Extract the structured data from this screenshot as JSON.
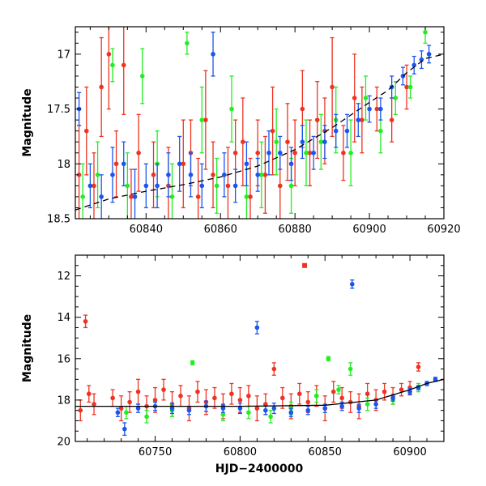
{
  "chart_data": [
    {
      "type": "scatter",
      "xlim": [
        60821,
        60920
      ],
      "ylim": [
        18.5,
        16.75
      ],
      "xticks": [
        60840,
        60860,
        60880,
        60900,
        60920
      ],
      "xtick_labels": [
        "60840",
        "60860",
        "60880",
        "60900",
        "60920"
      ],
      "yticks": [
        17,
        17.5,
        18,
        18.5
      ],
      "ytick_labels": [
        "17",
        "17.5",
        "18",
        "18.5"
      ],
      "xlabel": "",
      "ylabel": "Magnitude",
      "grid": false,
      "legend": "none",
      "model_curve": {
        "style": "dashed",
        "x": [
          60821,
          60830,
          60840,
          60850,
          60860,
          60870,
          60880,
          60890,
          60900,
          60905,
          60910,
          60915,
          60920
        ],
        "y": [
          18.42,
          18.32,
          18.25,
          18.19,
          18.12,
          18.02,
          17.87,
          17.67,
          17.44,
          17.33,
          17.17,
          17.04,
          17.0
        ]
      },
      "series": [
        {
          "color": "#ee3322",
          "x": [
            60822,
            60824,
            60826,
            60828,
            60830,
            60832,
            60834,
            60836,
            60838,
            60842,
            60846,
            60850,
            60852,
            60854,
            60856,
            60858,
            60862,
            60864,
            60866,
            60868,
            60870,
            60872,
            60874,
            60876,
            60878,
            60880,
            60882,
            60884,
            60886,
            60888,
            60890,
            60893,
            60896,
            60898,
            60902,
            60906,
            60910
          ],
          "y": [
            18.1,
            17.7,
            18.2,
            17.3,
            17.0,
            18.0,
            17.1,
            18.3,
            17.9,
            18.1,
            18.2,
            18.0,
            17.9,
            18.3,
            17.6,
            18.1,
            18.2,
            17.9,
            17.8,
            18.3,
            17.9,
            18.1,
            17.7,
            18.2,
            17.8,
            17.9,
            17.5,
            17.9,
            17.6,
            17.7,
            17.3,
            17.9,
            17.4,
            17.6,
            17.5,
            17.6,
            17.3
          ],
          "err": [
            0.45,
            0.4,
            0.3,
            0.45,
            0.5,
            0.3,
            0.45,
            0.25,
            0.35,
            0.3,
            0.35,
            0.4,
            0.3,
            0.35,
            0.45,
            0.3,
            0.35,
            0.3,
            0.4,
            0.35,
            0.3,
            0.35,
            0.4,
            0.3,
            0.35,
            0.3,
            0.35,
            0.3,
            0.35,
            0.3,
            0.45,
            0.25,
            0.4,
            0.3,
            0.2,
            0.2,
            0.2
          ]
        },
        {
          "color": "#22ee22",
          "x": [
            60823,
            60827,
            60831,
            60835,
            60839,
            60843,
            60847,
            60851,
            60855,
            60859,
            60863,
            60867,
            60871,
            60875,
            60879,
            60883,
            60887,
            60891,
            60895,
            60899,
            60903,
            60907,
            60911,
            60915
          ],
          "y": [
            18.3,
            18.1,
            17.1,
            18.2,
            17.2,
            18.0,
            18.3,
            16.9,
            17.6,
            18.2,
            17.5,
            18.3,
            18.1,
            17.8,
            18.2,
            17.9,
            17.8,
            17.6,
            17.9,
            17.4,
            17.7,
            17.4,
            17.3,
            16.8
          ],
          "err": [
            0.3,
            0.3,
            0.15,
            0.3,
            0.25,
            0.3,
            0.3,
            0.1,
            0.3,
            0.25,
            0.3,
            0.25,
            0.3,
            0.3,
            0.25,
            0.3,
            0.25,
            0.3,
            0.3,
            0.2,
            0.2,
            0.15,
            0.1,
            0.1
          ]
        },
        {
          "color": "#1a55ee",
          "x": [
            60822,
            60825,
            60828,
            60831,
            60834,
            60837,
            60840,
            60843,
            60846,
            60849,
            60852,
            60855,
            60858,
            60861,
            60864,
            60867,
            60870,
            60873,
            60876,
            60879,
            60882,
            60885,
            60888,
            60891,
            60894,
            60897,
            60900,
            60903,
            60906,
            60909,
            60912,
            60914,
            60916
          ],
          "y": [
            17.5,
            18.2,
            18.3,
            18.1,
            18.0,
            18.3,
            18.2,
            18.2,
            18.1,
            18.0,
            18.1,
            18.2,
            17.0,
            18.1,
            18.2,
            18.0,
            18.1,
            17.9,
            17.9,
            18.0,
            17.8,
            17.9,
            17.8,
            17.7,
            17.7,
            17.6,
            17.5,
            17.5,
            17.3,
            17.2,
            17.1,
            17.05,
            17.0
          ],
          "err": [
            0.15,
            0.2,
            0.2,
            0.25,
            0.2,
            0.25,
            0.2,
            0.2,
            0.2,
            0.25,
            0.2,
            0.2,
            0.2,
            0.2,
            0.15,
            0.2,
            0.15,
            0.2,
            0.15,
            0.15,
            0.15,
            0.15,
            0.15,
            0.15,
            0.15,
            0.15,
            0.12,
            0.1,
            0.1,
            0.08,
            0.08,
            0.08,
            0.08
          ]
        }
      ]
    },
    {
      "type": "scatter",
      "xlim": [
        60703,
        60920
      ],
      "ylim": [
        20,
        11
      ],
      "xticks": [
        60750,
        60800,
        60850,
        60900
      ],
      "xtick_labels": [
        "60750",
        "60800",
        "60850",
        "60900"
      ],
      "yticks": [
        12,
        14,
        16,
        18,
        20
      ],
      "ytick_labels": [
        "12",
        "14",
        "16",
        "18",
        "20"
      ],
      "xlabel": "HJD−2400000",
      "ylabel": "Magnitude",
      "grid": false,
      "legend": "none",
      "model_curve": {
        "style": "solid",
        "x": [
          60703,
          60725,
          60750,
          60800,
          60850,
          60880,
          60900,
          60910,
          60920
        ],
        "y": [
          18.3,
          18.3,
          18.3,
          18.3,
          18.25,
          18.0,
          17.5,
          17.2,
          17.0
        ]
      },
      "series": [
        {
          "color": "#ee3322",
          "x": [
            60706,
            60709,
            60711,
            60714,
            60725,
            60730,
            60735,
            60740,
            60745,
            60750,
            60755,
            60760,
            60765,
            60770,
            60775,
            60780,
            60785,
            60790,
            60795,
            60800,
            60805,
            60810,
            60815,
            60820,
            60825,
            60830,
            60835,
            60838,
            60840,
            60845,
            60850,
            60855,
            60860,
            60865,
            60870,
            60875,
            60880,
            60885,
            60890,
            60895,
            60900,
            60905
          ],
          "y": [
            18.5,
            14.2,
            17.7,
            18.2,
            17.9,
            18.4,
            18.1,
            17.6,
            18.3,
            18.0,
            17.5,
            18.2,
            17.8,
            18.4,
            17.6,
            18.1,
            17.9,
            18.3,
            17.7,
            18.0,
            17.8,
            18.4,
            18.2,
            16.5,
            17.9,
            18.3,
            17.7,
            11.5,
            18.1,
            17.8,
            18.4,
            17.6,
            17.9,
            18.1,
            18.3,
            17.7,
            18.0,
            17.6,
            17.8,
            17.5,
            17.4,
            16.4
          ],
          "err": [
            0.5,
            0.3,
            0.4,
            0.5,
            0.4,
            0.6,
            0.5,
            0.6,
            0.5,
            0.6,
            0.5,
            0.6,
            0.5,
            0.6,
            0.5,
            0.6,
            0.5,
            0.6,
            0.5,
            0.6,
            0.5,
            0.6,
            0.5,
            0.3,
            0.5,
            0.6,
            0.5,
            0.0,
            0.5,
            0.5,
            0.6,
            0.5,
            0.5,
            0.5,
            0.6,
            0.5,
            0.5,
            0.4,
            0.4,
            0.3,
            0.3,
            0.2
          ]
        },
        {
          "color": "#22ee22",
          "x": [
            60733,
            60745,
            60760,
            60772,
            60790,
            60805,
            60818,
            60830,
            60845,
            60852,
            60858,
            60865,
            60875,
            60890,
            60905
          ],
          "y": [
            18.6,
            18.8,
            18.5,
            16.2,
            18.7,
            18.6,
            18.8,
            18.4,
            17.8,
            16.0,
            17.5,
            16.5,
            18.2,
            18.0,
            17.4
          ],
          "err": [
            0.3,
            0.3,
            0.3,
            0.1,
            0.3,
            0.3,
            0.3,
            0.3,
            0.3,
            0.1,
            0.2,
            0.3,
            0.3,
            0.2,
            0.2
          ]
        },
        {
          "color": "#1a55ee",
          "x": [
            60728,
            60732,
            60740,
            60750,
            60760,
            60770,
            60780,
            60790,
            60800,
            60810,
            60815,
            60820,
            60830,
            60840,
            60850,
            60860,
            60866,
            60870,
            60880,
            60890,
            60900,
            60905,
            60910,
            60915
          ],
          "y": [
            18.6,
            19.4,
            18.4,
            18.3,
            18.4,
            18.5,
            18.3,
            18.4,
            18.4,
            14.5,
            18.5,
            18.4,
            18.6,
            18.5,
            18.4,
            18.3,
            12.4,
            18.4,
            18.2,
            17.9,
            17.6,
            17.4,
            17.2,
            17.0
          ],
          "err": [
            0.2,
            0.3,
            0.2,
            0.2,
            0.25,
            0.2,
            0.25,
            0.2,
            0.25,
            0.3,
            0.2,
            0.25,
            0.2,
            0.2,
            0.2,
            0.2,
            0.2,
            0.2,
            0.2,
            0.15,
            0.15,
            0.1,
            0.1,
            0.1
          ]
        }
      ]
    }
  ]
}
